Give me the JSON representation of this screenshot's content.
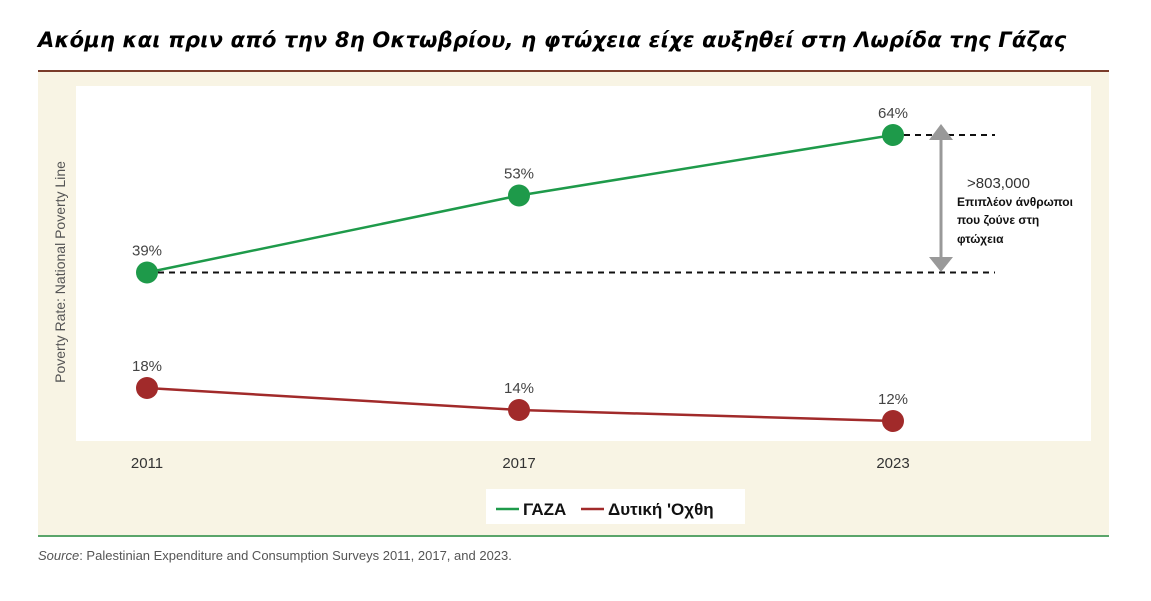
{
  "title": "Ακόμη και πριν από την 8η Οκτωβρίου, η φτώχεια είχε αυξηθεί στη Λωρίδα της Γάζας",
  "source_label": "Source",
  "source_text": ": Palestinian Expenditure and Consumption Surveys 2011, 2017, and 2023.",
  "annotation": {
    "value": ">803,000",
    "line1": "Επιπλέον άνθρωποι",
    "line2": "που ζούνε στη",
    "line3": "φτώχεια"
  },
  "colors": {
    "gaza": "#1e9a4a",
    "westbank": "#a12a2a",
    "arrow": "#999999",
    "plot_bg": "#ffffff",
    "panel_bg": "#f8f4e4"
  },
  "chart_data": {
    "type": "line",
    "title": "Ακόμη και πριν από την 8η Οκτωβρίου, η φτώχεια είχε αυξηθεί στη Λωρίδα της Γάζας",
    "xlabel": "",
    "ylabel": "Poverty Rate: National Poverty Line",
    "categories": [
      "2011",
      "2017",
      "2023"
    ],
    "ylim": [
      10,
      66
    ],
    "grid": false,
    "legend_position": "bottom-center",
    "series": [
      {
        "name": "ΓΑΖΑ",
        "values": [
          39,
          53,
          64
        ],
        "labels": [
          "39%",
          "53%",
          "64%"
        ],
        "color": "#1e9a4a"
      },
      {
        "name": "Δυτική 'Οχθη",
        "values": [
          18,
          14,
          12
        ],
        "labels": [
          "18%",
          "14%",
          "12%"
        ],
        "color": "#a12a2a"
      }
    ]
  }
}
